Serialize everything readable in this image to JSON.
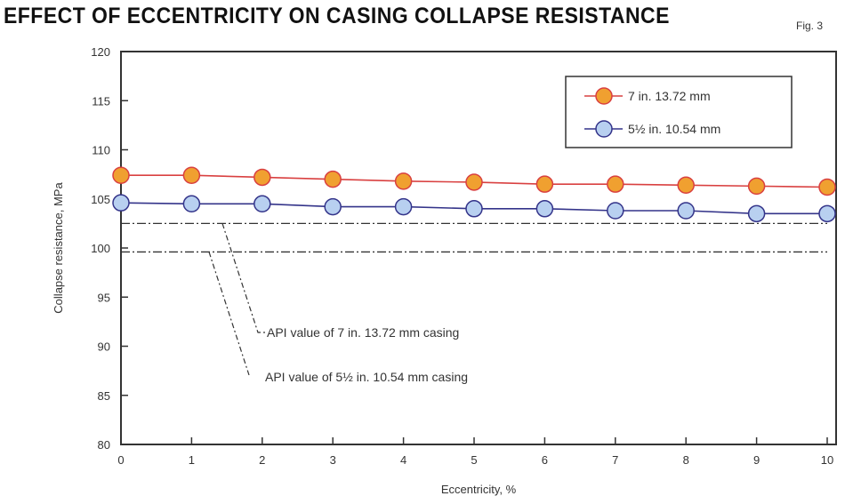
{
  "chart_data": {
    "type": "line",
    "title": "Effect of eccentricity on casing collapse resistance",
    "figure_label": "Fig. 3",
    "xlabel": "Eccentricity, %",
    "ylabel": "Collapse resistance, MPa",
    "xlim": [
      0,
      10
    ],
    "ylim": [
      80,
      120
    ],
    "xticks": [
      0,
      1,
      2,
      3,
      4,
      5,
      6,
      7,
      8,
      9,
      10
    ],
    "yticks": [
      80,
      85,
      90,
      95,
      100,
      105,
      110,
      115,
      120
    ],
    "x": [
      0,
      1,
      2,
      3,
      4,
      5,
      6,
      7,
      8,
      9,
      10
    ],
    "series": [
      {
        "name": "7 in. 13.72 mm",
        "color": "#d94040",
        "marker_color": "#f0a030",
        "values": [
          107.4,
          107.4,
          107.2,
          107.0,
          106.8,
          106.7,
          106.5,
          106.5,
          106.4,
          106.3,
          106.2
        ]
      },
      {
        "name": "5½ in. 10.54 mm",
        "color": "#34348a",
        "marker_color": "#b8d0f0",
        "values": [
          104.6,
          104.5,
          104.5,
          104.2,
          104.2,
          104.0,
          104.0,
          103.8,
          103.8,
          103.5,
          103.5
        ]
      }
    ],
    "reference_lines": [
      {
        "label": "API value of 7 in. 13.72 mm casing",
        "value": 102.5
      },
      {
        "label": "API value of 5½ in. 10.54 mm casing",
        "value": 99.6
      }
    ],
    "legend_position": "top-right",
    "grid": false
  }
}
